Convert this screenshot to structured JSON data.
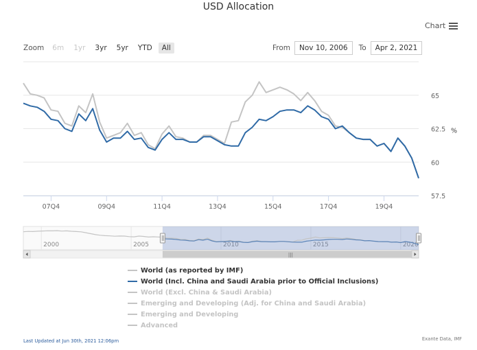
{
  "title": "USD Allocation",
  "menu": {
    "label": "Chart"
  },
  "zoom": {
    "label": "Zoom",
    "buttons": [
      {
        "label": "6m",
        "state": "disabled"
      },
      {
        "label": "1yr",
        "state": "disabled"
      },
      {
        "label": "3yr",
        "state": "normal"
      },
      {
        "label": "5yr",
        "state": "normal"
      },
      {
        "label": "YTD",
        "state": "normal"
      },
      {
        "label": "All",
        "state": "selected"
      }
    ]
  },
  "range": {
    "from_label": "From",
    "from_value": "Nov 10, 2006",
    "to_label": "To",
    "to_value": "Apr 2, 2021"
  },
  "chart_data": {
    "type": "line",
    "title": "USD Allocation",
    "x_axis": {
      "ticks": [
        "07Q4",
        "09Q4",
        "11Q4",
        "13Q4",
        "15Q4",
        "17Q4",
        "19Q4"
      ],
      "range": [
        "2006Q4",
        "2021Q1"
      ]
    },
    "y_axis": {
      "ticks": [
        57.5,
        60,
        62.5,
        65
      ],
      "range": [
        57.5,
        67.5
      ],
      "position": "right",
      "unit_label": "%"
    },
    "grid": true,
    "colors": {
      "highlight": "#2f6aa6",
      "muted": "#c4c4c4"
    },
    "x": [
      "2006Q4",
      "2007Q1",
      "2007Q2",
      "2007Q3",
      "2007Q4",
      "2008Q1",
      "2008Q2",
      "2008Q3",
      "2008Q4",
      "2009Q1",
      "2009Q2",
      "2009Q3",
      "2009Q4",
      "2010Q1",
      "2010Q2",
      "2010Q3",
      "2010Q4",
      "2011Q1",
      "2011Q2",
      "2011Q3",
      "2011Q4",
      "2012Q1",
      "2012Q2",
      "2012Q3",
      "2012Q4",
      "2013Q1",
      "2013Q2",
      "2013Q3",
      "2013Q4",
      "2014Q1",
      "2014Q2",
      "2014Q3",
      "2014Q4",
      "2015Q1",
      "2015Q2",
      "2015Q3",
      "2015Q4",
      "2016Q1",
      "2016Q2",
      "2016Q3",
      "2016Q4",
      "2017Q1",
      "2017Q2",
      "2017Q3",
      "2017Q4",
      "2018Q1",
      "2018Q2",
      "2018Q3",
      "2018Q4",
      "2019Q1",
      "2019Q2",
      "2019Q3",
      "2019Q4",
      "2020Q1",
      "2020Q2",
      "2020Q3",
      "2020Q4",
      "2021Q1"
    ],
    "series": [
      {
        "name": "World (as reported by IMF)",
        "visible": true,
        "color": "#c4c4c4",
        "values": [
          65.9,
          65.1,
          65.0,
          64.8,
          63.9,
          63.8,
          62.9,
          62.7,
          64.2,
          63.7,
          65.1,
          63.0,
          61.8,
          62.0,
          62.2,
          62.9,
          62.0,
          62.2,
          61.3,
          61.0,
          62.1,
          62.7,
          61.9,
          61.8,
          61.5,
          61.5,
          62.0,
          62.0,
          61.7,
          61.4,
          63.0,
          63.1,
          64.5,
          65.0,
          66.0,
          65.2,
          65.4,
          65.6,
          65.4,
          65.1,
          64.6,
          65.2,
          64.6,
          63.8,
          63.5,
          62.7,
          62.6,
          62.2,
          61.8,
          61.7,
          61.7,
          61.2,
          61.4,
          60.8,
          61.8,
          61.2,
          60.3,
          58.8
        ]
      },
      {
        "name": "World (Incl. China and Saudi Arabia prior to Official Inclusions)",
        "visible": true,
        "color": "#2f6aa6",
        "values": [
          64.4,
          64.2,
          64.1,
          63.8,
          63.2,
          63.1,
          62.5,
          62.3,
          63.6,
          63.1,
          64.0,
          62.4,
          61.5,
          61.8,
          61.8,
          62.3,
          61.7,
          61.8,
          61.1,
          60.9,
          61.7,
          62.2,
          61.7,
          61.7,
          61.5,
          61.5,
          61.9,
          61.9,
          61.6,
          61.3,
          61.2,
          61.2,
          62.2,
          62.6,
          63.2,
          63.1,
          63.4,
          63.8,
          63.9,
          63.9,
          63.7,
          64.2,
          63.9,
          63.4,
          63.2,
          62.5,
          62.7,
          62.2,
          61.8,
          61.7,
          61.7,
          61.2,
          61.4,
          60.8,
          61.8,
          61.2,
          60.3,
          58.8
        ]
      },
      {
        "name": "World (Excl. China & Saudi Arabia)",
        "visible": false,
        "color": "#c4c4c4"
      },
      {
        "name": "Emerging and Developing (Adj. for China and Saudi Arabia)",
        "visible": false,
        "color": "#c4c4c4"
      },
      {
        "name": "Emerging and Developing",
        "visible": false,
        "color": "#c4c4c4"
      },
      {
        "name": "Advanced",
        "visible": false,
        "color": "#c4c4c4"
      }
    ]
  },
  "navigator": {
    "ticks": [
      "2000",
      "2005",
      "2010",
      "2015",
      "2020"
    ],
    "span_start": "1999Q1",
    "span_end": "2021Q1",
    "selection_start": "2006Q4",
    "selection_end": "2021Q1",
    "scrollbar_grip": "|||",
    "history_values": [
      71.0,
      71.3,
      71.2,
      71.5,
      71.7,
      71.9,
      71.8,
      72.0,
      71.6,
      71.8,
      71.4,
      71.2,
      70.9,
      70.1,
      69.2,
      68.3,
      67.7,
      67.3,
      67.1,
      66.8,
      67.0,
      66.9,
      66.4,
      66.2,
      66.9,
      66.6,
      66.0,
      66.3,
      66.1
    ]
  },
  "footer": {
    "updated": "Last Updated at Jun 30th, 2021 12:06pm",
    "source": "Exante Data, IMF"
  }
}
